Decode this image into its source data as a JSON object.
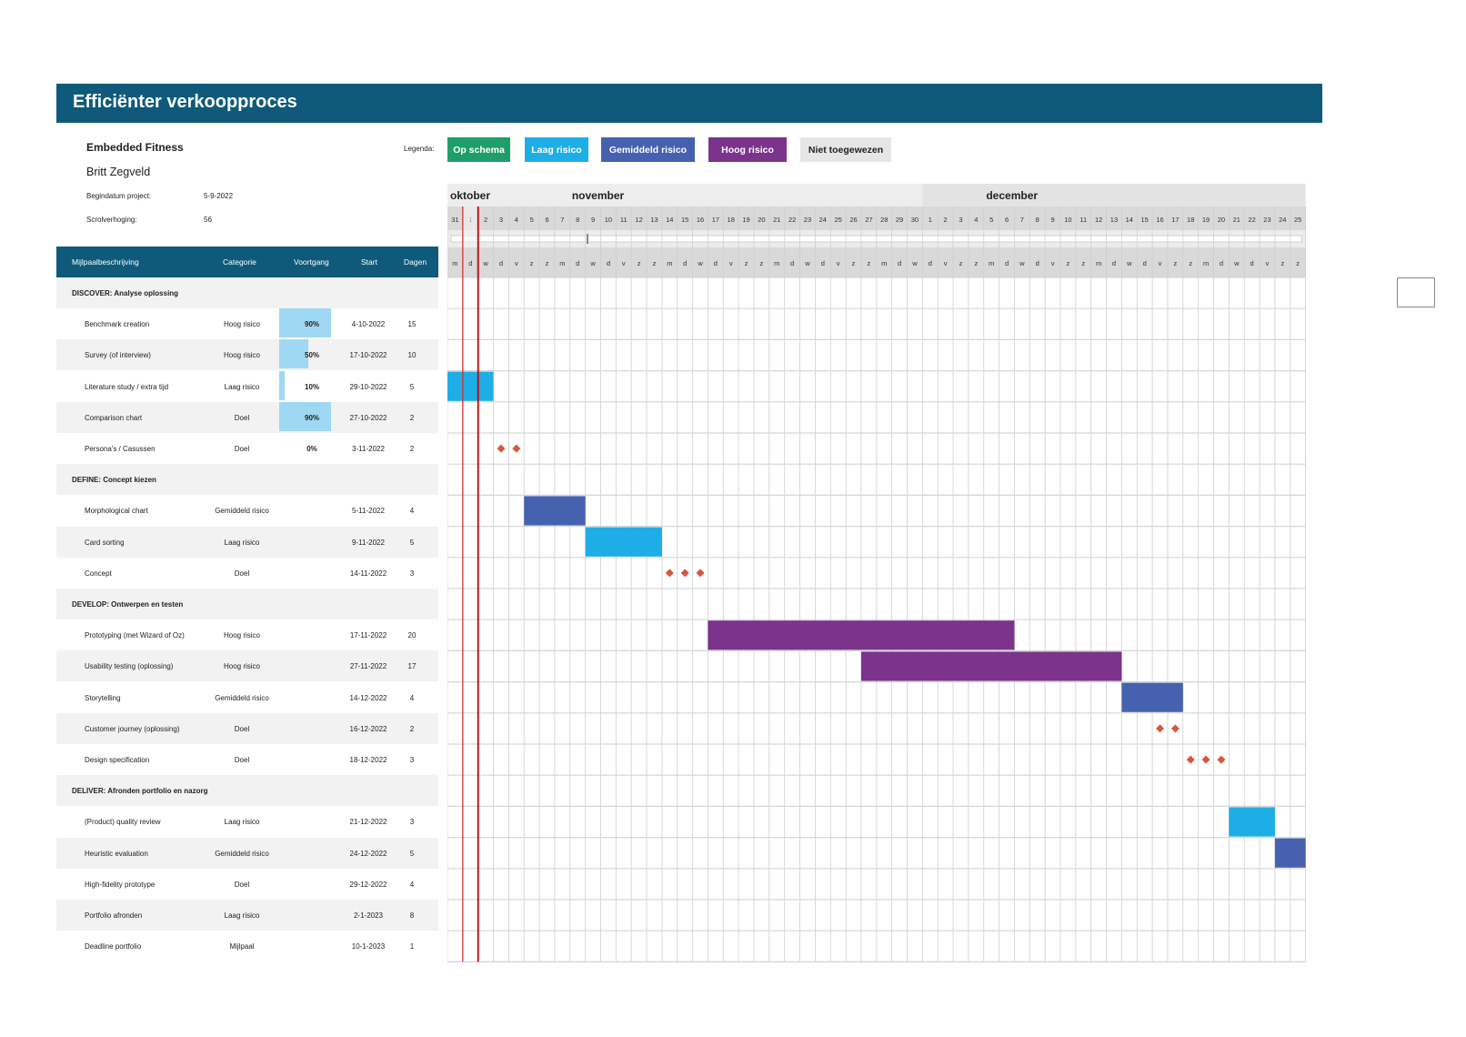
{
  "title": "Efficiënter verkoopproces",
  "project": {
    "name": "Embedded Fitness",
    "author": "Britt Zegveld",
    "start_label": "Begindatum project:",
    "start_value": "5-9-2022",
    "scroll_label": "Scrolverhoging:",
    "scroll_value": "56"
  },
  "legend": {
    "label": "Legenda:",
    "items": [
      {
        "label": "Op schema",
        "color": "#1f9e6a",
        "text_color": "#ffffff"
      },
      {
        "label": "Laag risico",
        "color": "#1eaee6",
        "text_color": "#ffffff"
      },
      {
        "label": "Gemiddeld risico",
        "color": "#4561b0",
        "text_color": "#ffffff"
      },
      {
        "label": "Hoog risico",
        "color": "#7b338c",
        "text_color": "#ffffff"
      },
      {
        "label": "Niet toegewezen",
        "color": "#e6e6e6",
        "text_color": "#222222"
      }
    ]
  },
  "table_headers": {
    "milestone": "Mijlpaalbeschrijving",
    "category": "Categorie",
    "progress": "Voortgang",
    "start": "Start",
    "days": "Dagen"
  },
  "rows": [
    {
      "type": "phase",
      "name": "DISCOVER: Analyse oplossing"
    },
    {
      "type": "task",
      "name": "Benchmark creation",
      "category": "Hoog risico",
      "progress": "90%",
      "start": "4-10-2022",
      "days": "15"
    },
    {
      "type": "task",
      "name": "Survey (of interview)",
      "category": "Hoog risico",
      "progress": "50%",
      "start": "17-10-2022",
      "days": "10"
    },
    {
      "type": "task",
      "name": "Literature study / extra tijd",
      "category": "Laag risico",
      "progress": "10%",
      "start": "29-10-2022",
      "days": "5"
    },
    {
      "type": "task",
      "name": "Comparison chart",
      "category": "Doel",
      "progress": "90%",
      "start": "27-10-2022",
      "days": "2"
    },
    {
      "type": "task",
      "name": "Persona's / Casussen",
      "category": "Doel",
      "progress": "0%",
      "start": "3-11-2022",
      "days": "2"
    },
    {
      "type": "phase",
      "name": "DEFINE: Concept kiezen"
    },
    {
      "type": "task",
      "name": "Morphological chart",
      "category": "Gemiddeld risico",
      "progress": "",
      "start": "5-11-2022",
      "days": "4"
    },
    {
      "type": "task",
      "name": "Card sorting",
      "category": "Laag risico",
      "progress": "",
      "start": "9-11-2022",
      "days": "5"
    },
    {
      "type": "task",
      "name": "Concept",
      "category": "Doel",
      "progress": "",
      "start": "14-11-2022",
      "days": "3"
    },
    {
      "type": "phase",
      "name": "DEVELOP: Ontwerpen en testen"
    },
    {
      "type": "task",
      "name": "Prototyping (met Wizard of Oz)",
      "category": "Hoog risico",
      "progress": "",
      "start": "17-11-2022",
      "days": "20"
    },
    {
      "type": "task",
      "name": "Usability testing (oplossing)",
      "category": "Hoog risico",
      "progress": "",
      "start": "27-11-2022",
      "days": "17"
    },
    {
      "type": "task",
      "name": "Storytelling",
      "category": "Gemiddeld risico",
      "progress": "",
      "start": "14-12-2022",
      "days": "4"
    },
    {
      "type": "task",
      "name": "Customer journey (oplossing)",
      "category": "Doel",
      "progress": "",
      "start": "16-12-2022",
      "days": "2"
    },
    {
      "type": "task",
      "name": "Design specification",
      "category": "Doel",
      "progress": "",
      "start": "18-12-2022",
      "days": "3"
    },
    {
      "type": "phase",
      "name": "DELIVER: Afronden portfolio en nazorg"
    },
    {
      "type": "task",
      "name": "(Product) quality review",
      "category": "Laag risico",
      "progress": "",
      "start": "21-12-2022",
      "days": "3"
    },
    {
      "type": "task",
      "name": "Heuristic evaluation",
      "category": "Gemiddeld risico",
      "progress": "",
      "start": "24-12-2022",
      "days": "5"
    },
    {
      "type": "task",
      "name": "High-fidelity prototype",
      "category": "Doel",
      "progress": "",
      "start": "29-12-2022",
      "days": "4"
    },
    {
      "type": "task",
      "name": "Portfolio afronden",
      "category": "Laag risico",
      "progress": "",
      "start": "2-1-2023",
      "days": "8"
    },
    {
      "type": "task",
      "name": "Deadline portfolio",
      "category": "Mijlpaal",
      "progress": "",
      "start": "10-1-2023",
      "days": "1"
    }
  ],
  "timeline": {
    "months": [
      {
        "label": "oktober",
        "first_day_index": 0
      },
      {
        "label": "november",
        "first_day_index": 1
      },
      {
        "label": "december",
        "first_day_index": 31
      }
    ],
    "days": [
      "31",
      "1",
      "2",
      "3",
      "4",
      "5",
      "6",
      "7",
      "8",
      "9",
      "10",
      "11",
      "12",
      "13",
      "14",
      "15",
      "16",
      "17",
      "18",
      "19",
      "20",
      "21",
      "22",
      "23",
      "24",
      "25",
      "26",
      "27",
      "28",
      "29",
      "30",
      "1",
      "2",
      "3",
      "4",
      "5",
      "6",
      "7",
      "8",
      "9",
      "10",
      "11",
      "12",
      "13",
      "14",
      "15",
      "16",
      "17",
      "18",
      "19",
      "20",
      "21",
      "22",
      "23",
      "24",
      "25"
    ],
    "weekdays": [
      "m",
      "d",
      "w",
      "d",
      "v",
      "z",
      "z",
      "m",
      "d",
      "w",
      "d",
      "v",
      "z",
      "z",
      "m",
      "d",
      "w",
      "d",
      "v",
      "z",
      "z",
      "m",
      "d",
      "w",
      "d",
      "v",
      "z",
      "z",
      "m",
      "d",
      "w",
      "d",
      "v",
      "z",
      "z",
      "m",
      "d",
      "w",
      "d",
      "v",
      "z",
      "z",
      "m",
      "d",
      "w",
      "d",
      "v",
      "z",
      "z",
      "m",
      "d",
      "w",
      "d",
      "v",
      "z",
      "z"
    ],
    "today_index": 1,
    "bars": [
      {
        "row": 3,
        "start_index": 0,
        "length": 3,
        "color": "#1eaee6"
      },
      {
        "row": 7,
        "start_index": 5,
        "length": 4,
        "color": "#4561b0"
      },
      {
        "row": 8,
        "start_index": 9,
        "length": 5,
        "color": "#1eaee6"
      },
      {
        "row": 11,
        "start_index": 17,
        "length": 20,
        "color": "#7b338c"
      },
      {
        "row": 12,
        "start_index": 27,
        "length": 17,
        "color": "#7b338c"
      },
      {
        "row": 13,
        "start_index": 44,
        "length": 4,
        "color": "#4561b0"
      },
      {
        "row": 17,
        "start_index": 51,
        "length": 3,
        "color": "#1eaee6"
      },
      {
        "row": 18,
        "start_index": 54,
        "length": 2,
        "color": "#4561b0"
      }
    ],
    "milestones": [
      {
        "row": 5,
        "start_index": 3,
        "length": 2
      },
      {
        "row": 9,
        "start_index": 14,
        "length": 3
      },
      {
        "row": 14,
        "start_index": 46,
        "length": 2
      },
      {
        "row": 15,
        "start_index": 48,
        "length": 3
      }
    ],
    "milestone_color": "#d8553a"
  }
}
